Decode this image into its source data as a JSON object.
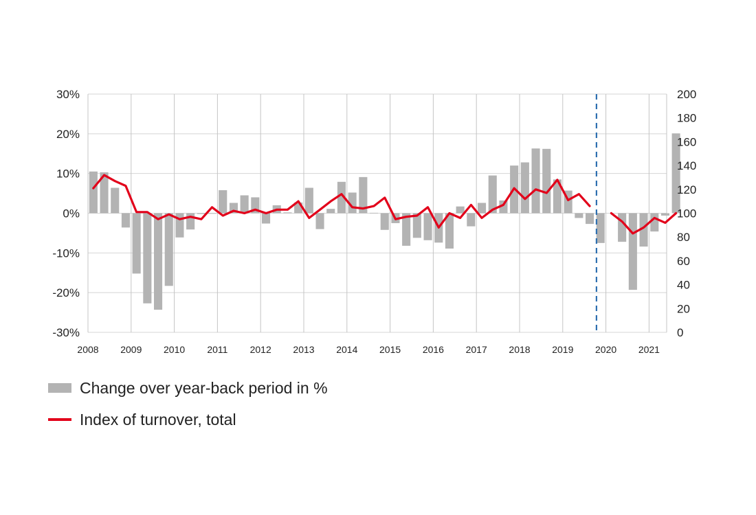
{
  "chart_data": {
    "type": "bar",
    "colors": {
      "bars": "#b3b3b3",
      "line": "#e2001a",
      "divider": "#2e6fb0",
      "grid": "#d4d4d4"
    },
    "x_tick_labels": [
      "2008",
      "2009",
      "2010",
      "2011",
      "2012",
      "2013",
      "2014",
      "2015",
      "2016",
      "2017",
      "2018",
      "2019",
      "2020",
      "2021"
    ],
    "left_axis": {
      "ticks": [
        "30%",
        "20%",
        "10%",
        "0%",
        "-10%",
        "-20%",
        "-30%"
      ],
      "ylim": [
        -30,
        30
      ]
    },
    "right_axis": {
      "ticks": [
        "200",
        "180",
        "160",
        "140",
        "120",
        "100",
        "80",
        "60",
        "40",
        "20",
        "0"
      ],
      "ylim": [
        0,
        200
      ]
    },
    "bar_series": {
      "name": "Change over year-back period in %",
      "values": [
        10.5,
        10.3,
        6.4,
        -3.6,
        -15.2,
        -22.7,
        -24.3,
        -18.3,
        -6.1,
        -4.1,
        -0.2,
        -0.1,
        5.8,
        2.6,
        4.5,
        4.0,
        -2.6,
        2.0,
        0.2,
        2.7,
        6.4,
        -4.0,
        1.1,
        7.9,
        5.2,
        9.1,
        0.1,
        -4.2,
        -2.5,
        -8.2,
        -6.2,
        -6.8,
        -7.4,
        -8.9,
        1.7,
        -3.3,
        2.6,
        9.5,
        3.2,
        12.0,
        12.8,
        16.3,
        16.2,
        8.5,
        5.7,
        -1.2,
        -2.7,
        -7.5,
        null,
        -7.2,
        -19.3,
        -8.4,
        -4.6,
        -0.6,
        20.1
      ]
    },
    "line_series": {
      "name": "Index of turnover, total",
      "segments": [
        [
          121,
          132,
          127,
          123,
          101,
          101,
          95,
          99,
          95,
          97,
          95,
          105,
          98,
          102,
          100,
          103,
          100,
          103,
          103,
          110,
          96,
          103,
          110,
          116,
          105,
          104,
          106,
          113,
          95,
          97,
          98,
          105,
          88,
          100,
          96,
          107,
          96,
          103,
          107,
          121,
          112,
          120,
          117,
          128,
          111,
          116,
          106
        ],
        [
          100,
          93,
          83,
          88,
          96,
          92,
          100
        ]
      ]
    },
    "divider_after_quarter": 47
  },
  "legend": [
    {
      "label": "Change over year-back period in %",
      "type": "bar"
    },
    {
      "label": "Index of turnover, total",
      "type": "line"
    }
  ]
}
